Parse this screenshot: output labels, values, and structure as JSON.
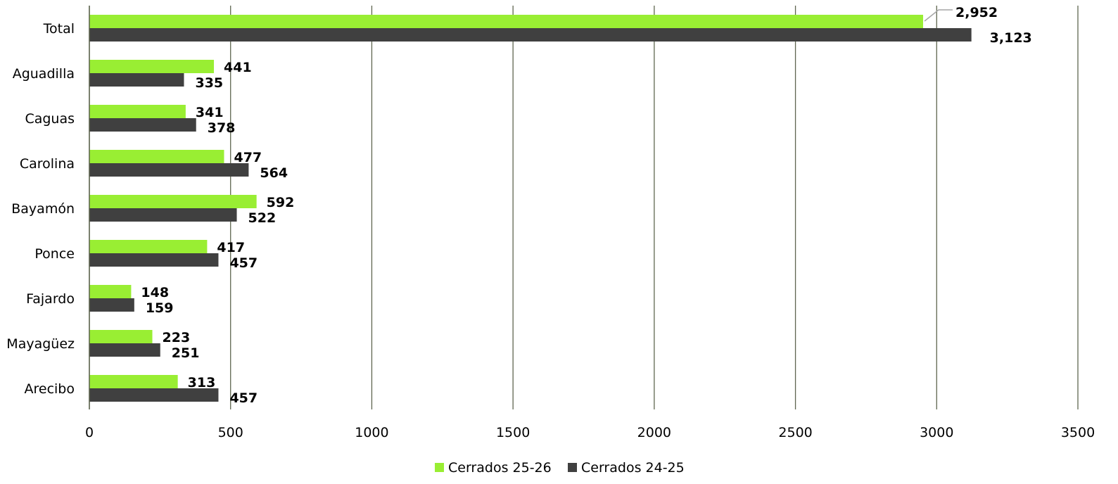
{
  "chart_data": {
    "type": "bar",
    "orientation": "horizontal",
    "categories": [
      "Total",
      "Aguadilla",
      "Caguas",
      "Carolina",
      "Bayamón",
      "Ponce",
      "Fajardo",
      "Mayagüez",
      "Arecibo"
    ],
    "series": [
      {
        "name": "Cerrados 25-26",
        "color": "#99ee33",
        "values": [
          2952,
          441,
          341,
          477,
          592,
          417,
          148,
          223,
          313
        ],
        "labels": [
          "2,952",
          "441",
          "341",
          "477",
          "592",
          "417",
          "148",
          "223",
          "313"
        ]
      },
      {
        "name": "Cerrados 24-25",
        "color": "#404040",
        "values": [
          3123,
          335,
          378,
          564,
          522,
          457,
          159,
          251,
          457
        ],
        "labels": [
          "3,123",
          "335",
          "378",
          "564",
          "522",
          "457",
          "159",
          "251",
          "457"
        ]
      }
    ],
    "xlim": [
      0,
      3500
    ],
    "xticks": [
      0,
      500,
      1000,
      1500,
      2000,
      2500,
      3000,
      3500
    ],
    "xtick_labels": [
      "0",
      "500",
      "1000",
      "1500",
      "2000",
      "2500",
      "3000",
      "3500"
    ],
    "grid": "vertical",
    "gridline_color": "#5f6650",
    "legend_position": "bottom-center"
  }
}
